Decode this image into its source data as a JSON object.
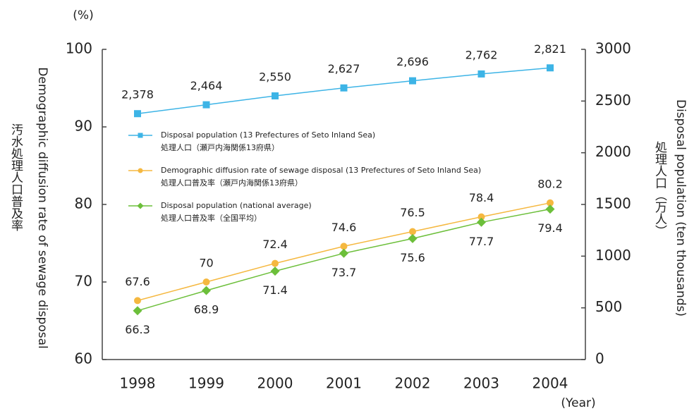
{
  "chart_data": {
    "type": "line",
    "y_unit": "(%)",
    "x_unit": "(Year)",
    "ylabel": "Demographic diffusion rate of sewage disposal",
    "ylabel_ja": "汚水処理人口普及率",
    "y2label": "Disposal population (ten thousands)",
    "y2label_ja": "処理人口（万人）",
    "categories": [
      "1998",
      "1999",
      "2000",
      "2001",
      "2002",
      "2003",
      "2004"
    ],
    "ylim": [
      60,
      100
    ],
    "yticks": [
      60,
      70,
      80,
      90,
      100
    ],
    "y2lim": [
      0,
      3000
    ],
    "y2ticks": [
      0,
      500,
      1000,
      1500,
      2000,
      2500,
      3000
    ],
    "grid": false,
    "series": [
      {
        "name": "Disposal population (13 Prefectures of Seto Inland Sea)",
        "name_ja": "処理人口（瀬戸内海関係13府県）",
        "color": "#3db4e6",
        "marker": "square",
        "axis": "y2",
        "label_position": "above",
        "values": [
          2378,
          2464,
          2550,
          2627,
          2696,
          2762,
          2821
        ],
        "value_labels": [
          "2,378",
          "2,464",
          "2,550",
          "2,627",
          "2,696",
          "2,762",
          "2,821"
        ]
      },
      {
        "name": "Demographic diffusion rate of sewage disposal (13 Prefectures of Seto Inland Sea)",
        "name_ja": "処理人口普及率（瀬戸内海関係13府県）",
        "color": "#f5b840",
        "marker": "circle",
        "axis": "y",
        "label_position": "above",
        "values": [
          67.6,
          70,
          72.4,
          74.6,
          76.5,
          78.4,
          80.2
        ]
      },
      {
        "name": "Disposal population (national average)",
        "name_ja": "処理人口普及率（全国平均）",
        "color": "#6cbf3a",
        "marker": "diamond",
        "axis": "y",
        "label_position": "below",
        "values": [
          66.3,
          68.9,
          71.4,
          73.7,
          75.6,
          77.7,
          79.4
        ]
      }
    ]
  }
}
